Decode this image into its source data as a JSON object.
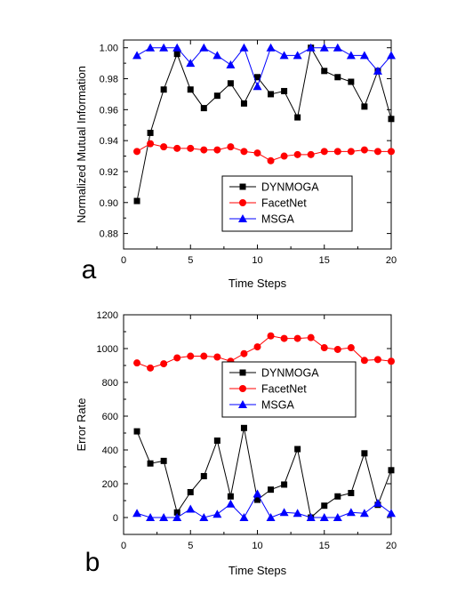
{
  "chart_data": [
    {
      "panel_label": "a",
      "type": "line",
      "xlabel": "Time Steps",
      "ylabel": "Normalized Mutual Information",
      "xlim": [
        0,
        20
      ],
      "ylim": [
        0.87,
        1.005
      ],
      "xticks": [
        0,
        5,
        10,
        15,
        20
      ],
      "yticks": [
        0.88,
        0.9,
        0.92,
        0.94,
        0.96,
        0.98,
        1.0
      ],
      "ytick_labels": [
        "0.88",
        "0.90",
        "0.92",
        "0.94",
        "0.96",
        "0.98",
        "1.00"
      ],
      "grid": false,
      "legend_position": "bottom-center",
      "x": [
        1,
        2,
        3,
        4,
        5,
        6,
        7,
        8,
        9,
        10,
        11,
        12,
        13,
        14,
        15,
        16,
        17,
        18,
        19,
        20
      ],
      "series": [
        {
          "name": "DYNMOGA",
          "color": "#000000",
          "marker": "square",
          "values": [
            0.901,
            0.945,
            0.973,
            0.996,
            0.973,
            0.961,
            0.969,
            0.977,
            0.964,
            0.981,
            0.97,
            0.972,
            0.955,
            1.0,
            0.985,
            0.981,
            0.978,
            0.962,
            0.985,
            0.954
          ]
        },
        {
          "name": "FacetNet",
          "color": "#ff0000",
          "marker": "circle",
          "values": [
            0.933,
            0.938,
            0.936,
            0.935,
            0.935,
            0.934,
            0.934,
            0.936,
            0.933,
            0.932,
            0.927,
            0.93,
            0.931,
            0.931,
            0.933,
            0.933,
            0.933,
            0.934,
            0.933,
            0.933
          ]
        },
        {
          "name": "MSGA",
          "color": "#0000ff",
          "marker": "triangle",
          "values": [
            0.995,
            1.0,
            1.0,
            1.0,
            0.99,
            1.0,
            0.995,
            0.989,
            1.0,
            0.975,
            1.0,
            0.995,
            0.995,
            1.0,
            1.0,
            1.0,
            0.995,
            0.995,
            0.985,
            0.995
          ]
        }
      ]
    },
    {
      "panel_label": "b",
      "type": "line",
      "xlabel": "Time Steps",
      "ylabel": "Error Rate",
      "xlim": [
        0,
        20
      ],
      "ylim": [
        -100,
        1200
      ],
      "xticks": [
        0,
        5,
        10,
        15,
        20
      ],
      "yticks": [
        0,
        200,
        400,
        600,
        800,
        1000,
        1200
      ],
      "ytick_labels": [
        "0",
        "200",
        "400",
        "600",
        "800",
        "1000",
        "1200"
      ],
      "grid": false,
      "legend_position": "center-right",
      "x": [
        1,
        2,
        3,
        4,
        5,
        6,
        7,
        8,
        9,
        10,
        11,
        12,
        13,
        14,
        15,
        16,
        17,
        18,
        19,
        20
      ],
      "series": [
        {
          "name": "DYNMOGA",
          "color": "#000000",
          "marker": "square",
          "values": [
            510,
            320,
            335,
            30,
            150,
            245,
            455,
            125,
            530,
            105,
            165,
            195,
            405,
            0,
            70,
            125,
            145,
            380,
            75,
            280
          ]
        },
        {
          "name": "FacetNet",
          "color": "#ff0000",
          "marker": "circle",
          "values": [
            915,
            885,
            910,
            945,
            955,
            955,
            950,
            925,
            970,
            1010,
            1075,
            1060,
            1060,
            1065,
            1005,
            995,
            1005,
            930,
            935,
            925
          ]
        },
        {
          "name": "MSGA",
          "color": "#0000ff",
          "marker": "triangle",
          "values": [
            25,
            0,
            0,
            0,
            50,
            0,
            20,
            80,
            0,
            140,
            0,
            30,
            25,
            0,
            0,
            0,
            30,
            25,
            85,
            25
          ]
        }
      ]
    }
  ]
}
